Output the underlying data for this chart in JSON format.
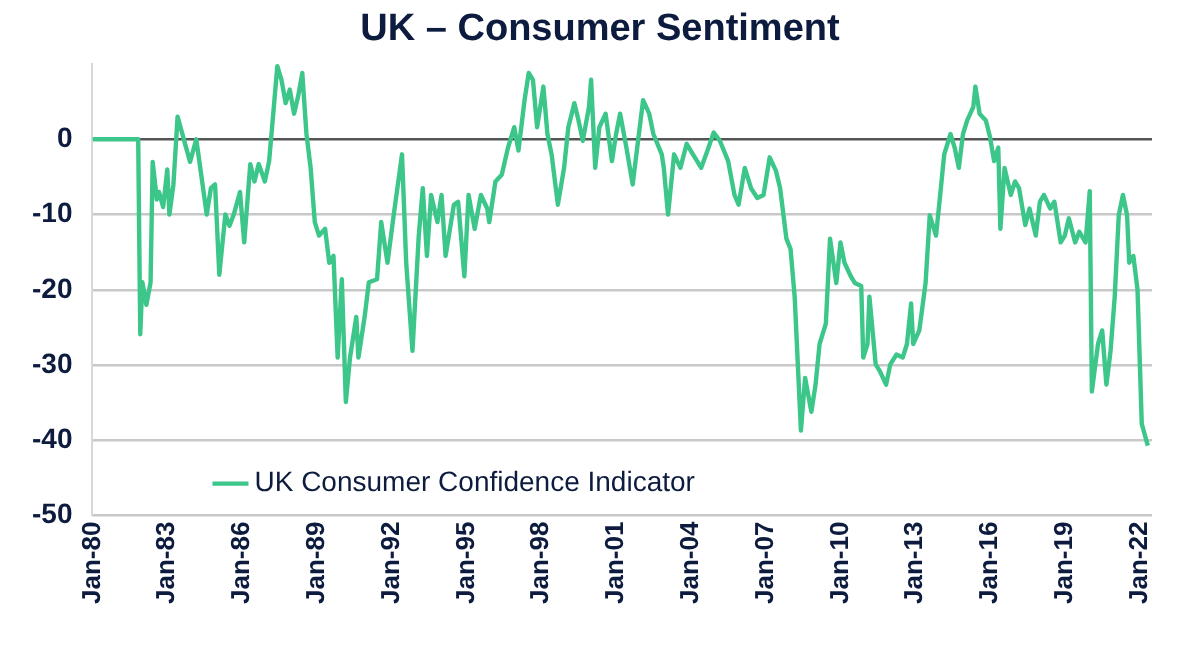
{
  "chart_data": {
    "type": "line",
    "title": "UK – Consumer Sentiment",
    "x": [
      "1980-01",
      "1981-11",
      "1981-12",
      "1982-01",
      "1982-03",
      "1982-05",
      "1982-06",
      "1982-08",
      "1982-09",
      "1982-11",
      "1983-01",
      "1983-02",
      "1983-04",
      "1983-06",
      "1983-08",
      "1983-10",
      "1983-12",
      "1984-03",
      "1984-05",
      "1984-08",
      "1984-10",
      "1984-12",
      "1985-02",
      "1985-05",
      "1985-07",
      "1985-09",
      "1985-12",
      "1986-02",
      "1986-05",
      "1986-07",
      "1986-09",
      "1986-12",
      "1987-02",
      "1987-03",
      "1987-06",
      "1987-08",
      "1987-10",
      "1987-12",
      "1988-02",
      "1988-04",
      "1988-06",
      "1988-08",
      "1988-10",
      "1988-12",
      "1989-02",
      "1989-05",
      "1989-07",
      "1989-09",
      "1989-11",
      "1990-01",
      "1990-03",
      "1990-05",
      "1990-08",
      "1990-09",
      "1990-12",
      "1991-02",
      "1991-06",
      "1991-08",
      "1991-11",
      "1992-02",
      "1992-06",
      "1992-08",
      "1992-11",
      "1993-02",
      "1993-04",
      "1993-06",
      "1993-08",
      "1993-11",
      "1994-01",
      "1994-03",
      "1994-07",
      "1994-09",
      "1994-12",
      "1995-02",
      "1995-05",
      "1995-08",
      "1995-11",
      "1995-12",
      "1996-03",
      "1996-06",
      "1996-09",
      "1996-12",
      "1997-02",
      "1997-05",
      "1997-07",
      "1997-09",
      "1997-11",
      "1998-02",
      "1998-04",
      "1998-06",
      "1998-09",
      "1998-12",
      "1999-02",
      "1999-05",
      "1999-07",
      "1999-09",
      "1999-12",
      "2000-01",
      "2000-03",
      "2000-05",
      "2000-08",
      "2000-11",
      "2001-01",
      "2001-03",
      "2001-06",
      "2001-09",
      "2001-12",
      "2002-02",
      "2002-05",
      "2002-07",
      "2002-11",
      "2002-12",
      "2003-02",
      "2003-05",
      "2003-08",
      "2003-11",
      "2004-02",
      "2004-06",
      "2004-09",
      "2004-12",
      "2005-03",
      "2005-07",
      "2005-10",
      "2005-12",
      "2006-03",
      "2006-06",
      "2006-09",
      "2006-12",
      "2007-03",
      "2007-06",
      "2007-08",
      "2007-11",
      "2008-01",
      "2008-03",
      "2008-06",
      "2008-08",
      "2008-11",
      "2009-01",
      "2009-03",
      "2009-06",
      "2009-08",
      "2009-11",
      "2010-01",
      "2010-03",
      "2010-06",
      "2010-08",
      "2010-11",
      "2010-12",
      "2011-02",
      "2011-03",
      "2011-06",
      "2011-08",
      "2011-11",
      "2012-01",
      "2012-04",
      "2012-07",
      "2012-09",
      "2012-11",
      "2012-12",
      "2013-03",
      "2013-06",
      "2013-08",
      "2013-11",
      "2014-01",
      "2014-03",
      "2014-06",
      "2014-08",
      "2014-10",
      "2014-12",
      "2015-02",
      "2015-05",
      "2015-06",
      "2015-08",
      "2015-11",
      "2016-01",
      "2016-03",
      "2016-05",
      "2016-06",
      "2016-08",
      "2016-11",
      "2017-01",
      "2017-03",
      "2017-06",
      "2017-08",
      "2017-11",
      "2018-01",
      "2018-03",
      "2018-06",
      "2018-08",
      "2018-11",
      "2019-01",
      "2019-03",
      "2019-06",
      "2019-08",
      "2019-11",
      "2020-01",
      "2020-02",
      "2020-05",
      "2020-07",
      "2020-09",
      "2020-11",
      "2021-01",
      "2021-03",
      "2021-05",
      "2021-07",
      "2021-08",
      "2021-10",
      "2021-12",
      "2022-02",
      "2022-05"
    ],
    "series": [
      {
        "name": "UK Consumer Confidence Indicator",
        "color": "#3cc68a",
        "values": [
          0,
          0,
          -25.9,
          -19,
          -22,
          -19,
          -3,
          -8,
          -7,
          -9,
          -4,
          -10,
          -6,
          3,
          1,
          -1,
          -3,
          0,
          -4,
          -10,
          -6.5,
          -6,
          -18,
          -10,
          -11.5,
          -10,
          -7,
          -13.7,
          -3.3,
          -5.6,
          -3.3,
          -5.6,
          -2.9,
          0,
          9.7,
          7.9,
          4.8,
          6.6,
          3.4,
          5.7,
          8.8,
          0.7,
          -3.8,
          -11,
          -12.8,
          -11.9,
          -16.4,
          -15.5,
          -29,
          -18.6,
          -34.9,
          -29,
          -23.6,
          -29,
          -23.6,
          -19,
          -18.6,
          -11,
          -16.4,
          -10,
          -2,
          -16.4,
          -28.1,
          -12.8,
          -6.5,
          -15.5,
          -7.4,
          -11,
          -7.4,
          -15.5,
          -8.7,
          -8.3,
          -18.2,
          -7.4,
          -11.9,
          -7.4,
          -9.2,
          -11,
          -5.6,
          -4.7,
          -1.1,
          1.6,
          -1.5,
          5.2,
          8.8,
          7.9,
          1.6,
          7,
          0.7,
          -2,
          -8.7,
          -3.8,
          1.6,
          4.8,
          2.5,
          -0.2,
          4.3,
          7.9,
          -3.8,
          1.6,
          3.4,
          -2.9,
          0.7,
          3.4,
          -1.1,
          -6,
          0.7,
          5.2,
          3.4,
          0.7,
          -2,
          -3.8,
          -10,
          -2,
          -3.8,
          -0.6,
          -2,
          -3.8,
          -1.5,
          0.9,
          -0.2,
          -2.9,
          -7.4,
          -8.7,
          -3.8,
          -6.5,
          -7.8,
          -7.4,
          -2.4,
          -4.2,
          -6.5,
          -13.2,
          -14.6,
          -20.9,
          -38.7,
          -31.7,
          -36.2,
          -32.6,
          -27.2,
          -24.5,
          -13.2,
          -19.1,
          -13.7,
          -16.4,
          -18.2,
          -19.1,
          -19.5,
          -29,
          -27.2,
          -20.9,
          -29.9,
          -30.8,
          -32.6,
          -29.9,
          -28.6,
          -29,
          -27.2,
          -21.8,
          -27.2,
          -25.4,
          -19.1,
          -10.1,
          -12.8,
          -7.4,
          -2,
          0.7,
          -1.1,
          -3.8,
          0.7,
          2.5,
          4.3,
          7,
          3.4,
          2.5,
          0.3,
          -2.9,
          -1.1,
          -11.9,
          -3.8,
          -7.4,
          -5.6,
          -6.5,
          -11.4,
          -9.2,
          -12.8,
          -8.3,
          -7.4,
          -9.2,
          -8.3,
          -13.7,
          -12.8,
          -10.5,
          -13.7,
          -12.3,
          -13.7,
          -6.9,
          -33.5,
          -27.2,
          -25.4,
          -32.6,
          -28.1,
          -20.9,
          -10.1,
          -7.4,
          -10.1,
          -16.4,
          -15.5,
          -20,
          -37.8,
          -40.7
        ]
      }
    ],
    "xlim": [
      "1980-01",
      "2022-07"
    ],
    "xticks": [
      {
        "value": "1980-01",
        "label": "Jan-80"
      },
      {
        "value": "1983-01",
        "label": "Jan-83"
      },
      {
        "value": "1986-01",
        "label": "Jan-86"
      },
      {
        "value": "1989-01",
        "label": "Jan-89"
      },
      {
        "value": "1992-01",
        "label": "Jan-92"
      },
      {
        "value": "1995-01",
        "label": "Jan-95"
      },
      {
        "value": "1998-01",
        "label": "Jan-98"
      },
      {
        "value": "2001-01",
        "label": "Jan-01"
      },
      {
        "value": "2004-01",
        "label": "Jan-04"
      },
      {
        "value": "2007-01",
        "label": "Jan-07"
      },
      {
        "value": "2010-01",
        "label": "Jan-10"
      },
      {
        "value": "2013-01",
        "label": "Jan-13"
      },
      {
        "value": "2016-01",
        "label": "Jan-16"
      },
      {
        "value": "2019-01",
        "label": "Jan-19"
      },
      {
        "value": "2022-01",
        "label": "Jan-22"
      }
    ],
    "ylim": [
      -50,
      10
    ],
    "yticks": [
      -50,
      -40,
      -30,
      -20,
      -10,
      0
    ],
    "grid": "y",
    "legend": "bottom left",
    "marker": "none",
    "line_style": "solid"
  }
}
